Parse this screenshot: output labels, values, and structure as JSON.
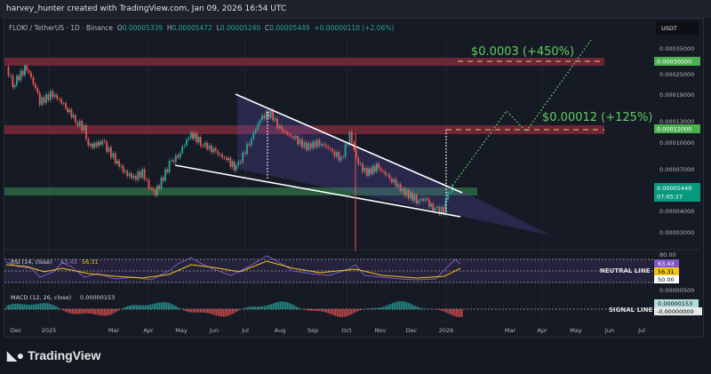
{
  "header": {
    "credit": "harvey_hunter created with TradingView.com, Jan 09, 2026 16:54 UTC"
  },
  "legend": {
    "symbol": "FLOKI / TetherUS · 1D · Binance",
    "o_label": "O",
    "o": "0.00005339",
    "h_label": "H",
    "h": "0.00005472",
    "l_label": "L",
    "l": "0.00005240",
    "c_label": "C",
    "c": "0.00005449",
    "change": "+0.00000110 (+2.06%)"
  },
  "currency_button": "USDT",
  "targets": {
    "t1": "$0.00012 (+125%)",
    "t2": "$0.0003 (+450%)"
  },
  "price_tags": {
    "level_high": "0.00030000",
    "level_mid": "0.00012000",
    "last": "0.00005449",
    "countdown": "07:05:27"
  },
  "rsi": {
    "label": "RSI (14, close)",
    "value": "63.43",
    "ma": "56.31",
    "top_tick": "80.00",
    "level": "50.00",
    "line_label": "NEUTRAL LINE"
  },
  "macd": {
    "label": "MACD (12, 26, close)",
    "value": "0.00000153",
    "top_tick": "0.00000500",
    "signal": "-0.00000000",
    "line_label": "SIGNAL LINE"
  },
  "colors": {
    "up": "#26a69a",
    "down": "#ef5350",
    "resistance": "#7a2a3a",
    "support": "#2e6b45",
    "target": "#5fcf5f",
    "rsi": "#7e57c2",
    "rsi_ma": "#f0c419"
  },
  "brand": "TradingView",
  "chart_data": {
    "type": "candlestick",
    "scale": "log",
    "y_ticks": [
      "0.00035000",
      "0.00025000",
      "0.00019000",
      "0.00013000",
      "0.00010000",
      "0.00007000",
      "0.00004000",
      "0.00003000"
    ],
    "x_ticks": [
      "Dec",
      "2025",
      "Mar",
      "Apr",
      "May",
      "Jun",
      "Jul",
      "Aug",
      "Sep",
      "Oct",
      "Nov",
      "Dec",
      "2026",
      "Mar",
      "Apr",
      "May",
      "Jun",
      "Jul"
    ],
    "resistance_levels": [
      0.0003,
      0.00012
    ],
    "support_level": 5.45e-05,
    "series": [
      [
        "2024-11-22",
        0.000279
      ],
      [
        "2024-11-28",
        0.00022
      ],
      [
        "2024-12-11",
        0.000279
      ],
      [
        "2024-12-19",
        0.000207
      ],
      [
        "2024-12-23",
        0.000173
      ],
      [
        "2025-01-04",
        0.000195
      ],
      [
        "2025-01-16",
        0.000163
      ],
      [
        "2025-01-25",
        0.000136
      ],
      [
        "2025-02-02",
        0.000121
      ],
      [
        "2025-02-06",
        9.5e-05
      ],
      [
        "2025-02-19",
        0.000101
      ],
      [
        "2025-03-03",
        8e-05
      ],
      [
        "2025-03-12",
        6.7e-05
      ],
      [
        "2025-03-20",
        6.3e-05
      ],
      [
        "2025-03-28",
        6.7e-05
      ],
      [
        "2025-04-05",
        5.26e-05
      ],
      [
        "2025-04-09",
        5.07e-05
      ],
      [
        "2025-04-22",
        7.5e-05
      ],
      [
        "2025-04-30",
        8.5e-05
      ],
      [
        "2025-05-12",
        0.000114
      ],
      [
        "2025-05-21",
        0.000101
      ],
      [
        "2025-06-02",
        9e-05
      ],
      [
        "2025-06-14",
        8e-05
      ],
      [
        "2025-06-23",
        7.1e-05
      ],
      [
        "2025-07-05",
        0.000101
      ],
      [
        "2025-07-17",
        0.000145
      ],
      [
        "2025-07-25",
        0.000148
      ],
      [
        "2025-08-02",
        0.000121
      ],
      [
        "2025-08-15",
        0.000107
      ],
      [
        "2025-08-27",
        9.5e-05
      ],
      [
        "2025-09-08",
        0.000101
      ],
      [
        "2025-09-20",
        9e-05
      ],
      [
        "2025-09-28",
        8e-05
      ],
      [
        "2025-10-06",
        0.000111
      ],
      [
        "2025-10-14",
        7.5e-05
      ],
      [
        "2025-10-22",
        6.7e-05
      ],
      [
        "2025-10-31",
        7.25e-05
      ],
      [
        "2025-11-12",
        6.3e-05
      ],
      [
        "2025-11-24",
        5.26e-05
      ],
      [
        "2025-12-07",
        4.67e-05
      ],
      [
        "2025-12-15",
        4.67e-05
      ],
      [
        "2025-12-24",
        4.05e-05
      ],
      [
        "2026-01-01",
        4.05e-05
      ],
      [
        "2026-01-05",
        5.26e-05
      ],
      [
        "2026-01-09",
        5.449e-05
      ]
    ]
  }
}
